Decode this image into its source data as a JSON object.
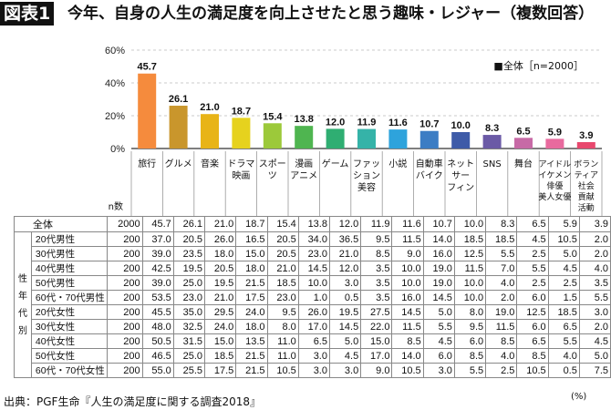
{
  "header": {
    "figure_label": "図表1",
    "title": "今年、自身の人生の満足度を向上させたと思う趣味・レジャー（複数回答）"
  },
  "chart_data": {
    "type": "bar",
    "categories": [
      [
        "旅行"
      ],
      [
        "グルメ"
      ],
      [
        "音楽"
      ],
      [
        "ドラマ",
        "映画"
      ],
      [
        "スポー",
        "ツ"
      ],
      [
        "漫画",
        "アニメ"
      ],
      [
        "ゲーム"
      ],
      [
        "ファッ",
        "ション",
        "美容"
      ],
      [
        "小説"
      ],
      [
        "自動車",
        "バイク"
      ],
      [
        "ネット",
        "サー",
        "フィン"
      ],
      [
        "SNS"
      ],
      [
        "舞台"
      ],
      [
        "アイドル",
        "イケメン",
        "俳優",
        "美人女優"
      ],
      [
        "ボラン",
        "ティア",
        "社会",
        "貢献",
        "活動"
      ]
    ],
    "values": [
      45.7,
      26.1,
      21.0,
      18.7,
      15.4,
      13.8,
      12.0,
      11.9,
      11.6,
      10.7,
      10.0,
      8.3,
      6.5,
      5.9,
      3.9
    ],
    "value_labels": [
      "45.7",
      "26.1",
      "21.0",
      "18.7",
      "15.4",
      "13.8",
      "12.0",
      "11.9",
      "11.6",
      "10.7",
      "10.0",
      "8.3",
      "6.5",
      "5.9",
      "3.9"
    ],
    "colors": [
      "#f58b3d",
      "#c9962c",
      "#e8b417",
      "#e6d21e",
      "#9cc93a",
      "#4fb550",
      "#2fae72",
      "#35b3a8",
      "#2ea3dc",
      "#3c7dc4",
      "#3e5ba8",
      "#6b5aa6",
      "#c76aa6",
      "#e86a9e",
      "#e8486e"
    ],
    "yticks": [
      "0%",
      "20%",
      "40%",
      "60%"
    ],
    "ylim": [
      0,
      60
    ],
    "legend": "■全体［n=2000］",
    "n_label": "n数"
  },
  "table": {
    "total_row": {
      "label": "全体",
      "n": "2000",
      "values": [
        "45.7",
        "26.1",
        "21.0",
        "18.7",
        "15.4",
        "13.8",
        "12.0",
        "11.9",
        "11.6",
        "10.7",
        "10.0",
        "8.3",
        "6.5",
        "5.9",
        "3.9"
      ]
    },
    "group_label": [
      "性",
      "年",
      "代",
      "別"
    ],
    "rows": [
      {
        "label": "20代男性",
        "n": "200",
        "values": [
          "37.0",
          "20.5",
          "26.0",
          "16.5",
          "20.5",
          "34.0",
          "36.5",
          "9.5",
          "11.5",
          "14.0",
          "18.5",
          "18.5",
          "4.5",
          "10.5",
          "2.0"
        ]
      },
      {
        "label": "30代男性",
        "n": "200",
        "values": [
          "39.0",
          "23.5",
          "18.0",
          "15.0",
          "20.5",
          "23.0",
          "21.0",
          "8.5",
          "9.0",
          "16.0",
          "12.5",
          "5.5",
          "2.5",
          "5.0",
          "2.0"
        ]
      },
      {
        "label": "40代男性",
        "n": "200",
        "values": [
          "42.5",
          "19.5",
          "20.5",
          "18.0",
          "21.0",
          "14.5",
          "12.0",
          "3.5",
          "10.0",
          "19.0",
          "11.5",
          "7.0",
          "5.5",
          "4.5",
          "4.0"
        ]
      },
      {
        "label": "50代男性",
        "n": "200",
        "values": [
          "39.0",
          "25.0",
          "19.5",
          "21.5",
          "18.5",
          "10.0",
          "3.0",
          "3.5",
          "10.0",
          "19.0",
          "10.0",
          "4.0",
          "2.5",
          "2.5",
          "3.5"
        ]
      },
      {
        "label": "60代・70代男性",
        "n": "200",
        "values": [
          "53.5",
          "23.0",
          "21.0",
          "17.5",
          "23.0",
          "1.0",
          "0.5",
          "3.5",
          "16.0",
          "14.5",
          "10.0",
          "2.0",
          "6.0",
          "1.5",
          "5.5"
        ]
      },
      {
        "label": "20代女性",
        "n": "200",
        "values": [
          "45.5",
          "35.0",
          "29.5",
          "24.0",
          "9.5",
          "26.0",
          "19.5",
          "27.5",
          "14.5",
          "5.0",
          "8.0",
          "19.0",
          "12.5",
          "18.5",
          "3.0"
        ]
      },
      {
        "label": "30代女性",
        "n": "200",
        "values": [
          "48.0",
          "32.5",
          "24.0",
          "18.0",
          "8.0",
          "17.0",
          "14.5",
          "22.0",
          "11.5",
          "5.5",
          "9.5",
          "11.5",
          "6.0",
          "6.5",
          "2.0"
        ]
      },
      {
        "label": "40代女性",
        "n": "200",
        "values": [
          "50.5",
          "31.5",
          "15.0",
          "13.5",
          "11.0",
          "6.5",
          "5.0",
          "15.0",
          "8.5",
          "4.5",
          "6.0",
          "8.5",
          "6.5",
          "5.5",
          "4.5"
        ]
      },
      {
        "label": "50代女性",
        "n": "200",
        "values": [
          "46.5",
          "25.0",
          "18.5",
          "21.5",
          "11.0",
          "3.0",
          "4.5",
          "17.0",
          "14.0",
          "6.0",
          "8.5",
          "4.0",
          "8.5",
          "4.0",
          "5.0"
        ]
      },
      {
        "label": "60代・70代女性",
        "n": "200",
        "values": [
          "55.0",
          "25.5",
          "17.5",
          "21.5",
          "10.5",
          "3.0",
          "3.0",
          "9.0",
          "10.5",
          "3.0",
          "5.5",
          "2.5",
          "10.5",
          "0.5",
          "7.5"
        ]
      }
    ]
  },
  "footer": {
    "source": "出典：PGF生命『人生の満足度に関する調査2018』",
    "unit": "(%)"
  }
}
